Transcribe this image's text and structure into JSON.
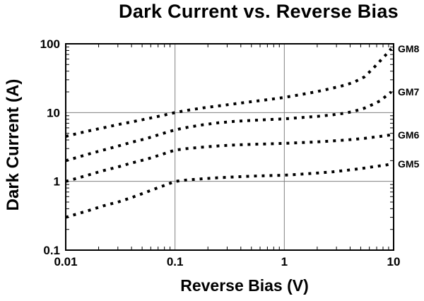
{
  "chart_data": {
    "type": "line",
    "title": "Dark Current vs. Reverse Bias",
    "xlabel": "Reverse Bias (V)",
    "ylabel": "Dark Current (A)",
    "x_scale": "log",
    "y_scale": "log",
    "xlim": [
      0.01,
      10
    ],
    "ylim": [
      0.1,
      100
    ],
    "x_ticks": [
      {
        "v": 0.01,
        "label": "0.01"
      },
      {
        "v": 0.1,
        "label": "0.1"
      },
      {
        "v": 1,
        "label": "1"
      },
      {
        "v": 10,
        "label": "10"
      }
    ],
    "y_ticks": [
      {
        "v": 100,
        "label": "100"
      },
      {
        "v": 10,
        "label": "10"
      },
      {
        "v": 1,
        "label": "1"
      },
      {
        "v": 0.1,
        "label": "0.1"
      }
    ],
    "grid": {
      "x_values": [
        0.1,
        1
      ],
      "y_values": [
        10,
        1
      ]
    },
    "legend_position": "right-outside",
    "style": {
      "series_color": "#000000",
      "grid_color": "#808080",
      "axis_color": "#000000",
      "background": "#ffffff",
      "line_style": "dotted"
    },
    "x": [
      0.01,
      0.013,
      0.017,
      0.022,
      0.03,
      0.04,
      0.055,
      0.075,
      0.1,
      0.13,
      0.18,
      0.25,
      0.35,
      0.5,
      0.7,
      1,
      1.4,
      2,
      2.8,
      3.5,
      4.3,
      5.4,
      6.5,
      7.5,
      8.7,
      9.5
    ],
    "series": [
      {
        "name": "GM8",
        "values": [
          4.5,
          5.0,
          5.5,
          6.0,
          6.7,
          7.3,
          8.1,
          9.0,
          10,
          10.8,
          11.7,
          12.5,
          13.4,
          14.4,
          15.4,
          16.6,
          18.2,
          20.2,
          22.8,
          24.8,
          27.5,
          33,
          44,
          56,
          72,
          85
        ]
      },
      {
        "name": "GM7",
        "values": [
          2.0,
          2.25,
          2.55,
          2.85,
          3.25,
          3.7,
          4.2,
          4.9,
          5.6,
          6.1,
          6.65,
          7.1,
          7.45,
          7.7,
          7.9,
          8.1,
          8.45,
          8.8,
          9.3,
          9.75,
          10.4,
          11.6,
          13.2,
          14.8,
          17.8,
          20
        ]
      },
      {
        "name": "GM6",
        "values": [
          1.0,
          1.12,
          1.27,
          1.43,
          1.62,
          1.85,
          2.1,
          2.45,
          2.85,
          3.0,
          3.15,
          3.28,
          3.38,
          3.45,
          3.5,
          3.57,
          3.65,
          3.75,
          3.88,
          3.97,
          4.08,
          4.22,
          4.38,
          4.5,
          4.65,
          4.75
        ]
      },
      {
        "name": "GM5",
        "values": [
          0.3,
          0.34,
          0.385,
          0.44,
          0.5,
          0.58,
          0.7,
          0.84,
          1.0,
          1.05,
          1.09,
          1.13,
          1.16,
          1.19,
          1.21,
          1.23,
          1.27,
          1.32,
          1.38,
          1.43,
          1.49,
          1.56,
          1.63,
          1.68,
          1.74,
          1.8
        ]
      }
    ]
  }
}
